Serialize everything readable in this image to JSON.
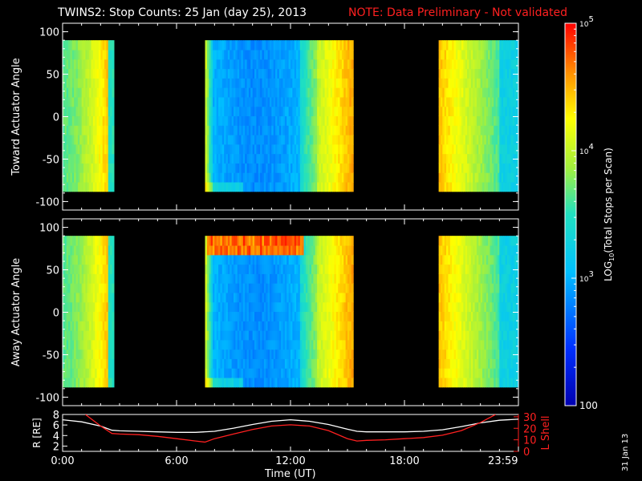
{
  "header": {
    "title": "TWINS2: Stop Counts: 25 Jan (day  25), 2013",
    "note": "NOTE: Data Preliminary - Not validated",
    "note_color": "#ff2020"
  },
  "date_stamp": "31 Jan 13",
  "chart_data": [
    {
      "type": "heatmap",
      "ylabel": "Toward Actuator Angle",
      "ylim": [
        -110,
        110
      ],
      "y_ticks": [
        "100",
        "50",
        "0",
        "-50",
        "-100"
      ],
      "y_tick_values": [
        100,
        50,
        0,
        -50,
        -100
      ],
      "angle_range": [
        -88,
        90
      ],
      "data_intervals_hours": [
        [
          0.0,
          2.7
        ],
        [
          7.5,
          15.3
        ],
        [
          19.8,
          24.0
        ]
      ],
      "colorscale": "log10 rainbow (dark blue = 100, red = 1e5)"
    },
    {
      "type": "heatmap",
      "ylabel": "Away Actuator Angle",
      "ylim": [
        -110,
        110
      ],
      "y_ticks": [
        "100",
        "50",
        "0",
        "-50",
        "-100"
      ],
      "y_tick_values": [
        100,
        50,
        0,
        -50,
        -100
      ],
      "angle_range": [
        -88,
        90
      ],
      "data_intervals_hours": [
        [
          0.0,
          2.7
        ],
        [
          7.5,
          15.3
        ],
        [
          19.8,
          24.0
        ]
      ],
      "colorscale": "log10 rainbow (dark blue = 100, red = 1e5)"
    },
    {
      "type": "line",
      "ylabel": "R [RE]",
      "ylim": [
        1,
        8
      ],
      "y_ticks": [
        "8",
        "6",
        "4",
        "2"
      ],
      "y_tick_values": [
        8,
        6,
        4,
        2
      ],
      "y2label": "L Shell",
      "y2lim": [
        0,
        32
      ],
      "y2_ticks": [
        "30",
        "20",
        "10",
        "0"
      ],
      "y2_tick_values": [
        30,
        20,
        10,
        0
      ],
      "xlabel": "Time (UT)",
      "x_ticks": [
        "0:00",
        "6:00",
        "12:00",
        "18:00",
        "23:59"
      ],
      "x_tick_values": [
        0,
        6,
        12,
        18,
        23.98
      ],
      "series": [
        {
          "name": "R [RE]",
          "color": "#ffffff",
          "axis": "left",
          "x": [
            0,
            1,
            2,
            2.6,
            3,
            4,
            5,
            6,
            7,
            8,
            9,
            10,
            11,
            12,
            13,
            14,
            15,
            15.5,
            16,
            17,
            18,
            19,
            20,
            21,
            22,
            23,
            24
          ],
          "y": [
            7.0,
            6.6,
            5.8,
            5.0,
            4.9,
            4.8,
            4.7,
            4.6,
            4.6,
            4.8,
            5.4,
            6.1,
            6.7,
            7.0,
            6.7,
            6.1,
            5.2,
            4.8,
            4.7,
            4.7,
            4.7,
            4.8,
            5.1,
            5.7,
            6.4,
            6.9,
            7.1
          ]
        },
        {
          "name": "L Shell",
          "color": "#ff2020",
          "axis": "right",
          "x": [
            1.2,
            2,
            2.6,
            3,
            4,
            5,
            6,
            7,
            7.5,
            8,
            9,
            10,
            11,
            12,
            13,
            14,
            15,
            15.5,
            16,
            17,
            18,
            19,
            20,
            21,
            22,
            22.8
          ],
          "y": [
            32,
            22,
            15.5,
            15,
            14.5,
            13,
            11,
            9,
            8,
            11,
            15,
            19,
            22,
            23,
            22,
            18,
            11,
            9,
            9.5,
            10,
            11,
            12,
            14,
            18,
            25,
            32
          ]
        }
      ]
    }
  ],
  "colorbar": {
    "label": "LOG10(Total Stops per Scan)",
    "scale": "log",
    "range": [
      100,
      100000
    ],
    "ticks": [
      {
        "value": 100000,
        "label": "10^5"
      },
      {
        "value": 10000,
        "label": "10^4"
      },
      {
        "value": 1000,
        "label": "10^3"
      },
      {
        "value": 100,
        "label": "100"
      }
    ]
  }
}
